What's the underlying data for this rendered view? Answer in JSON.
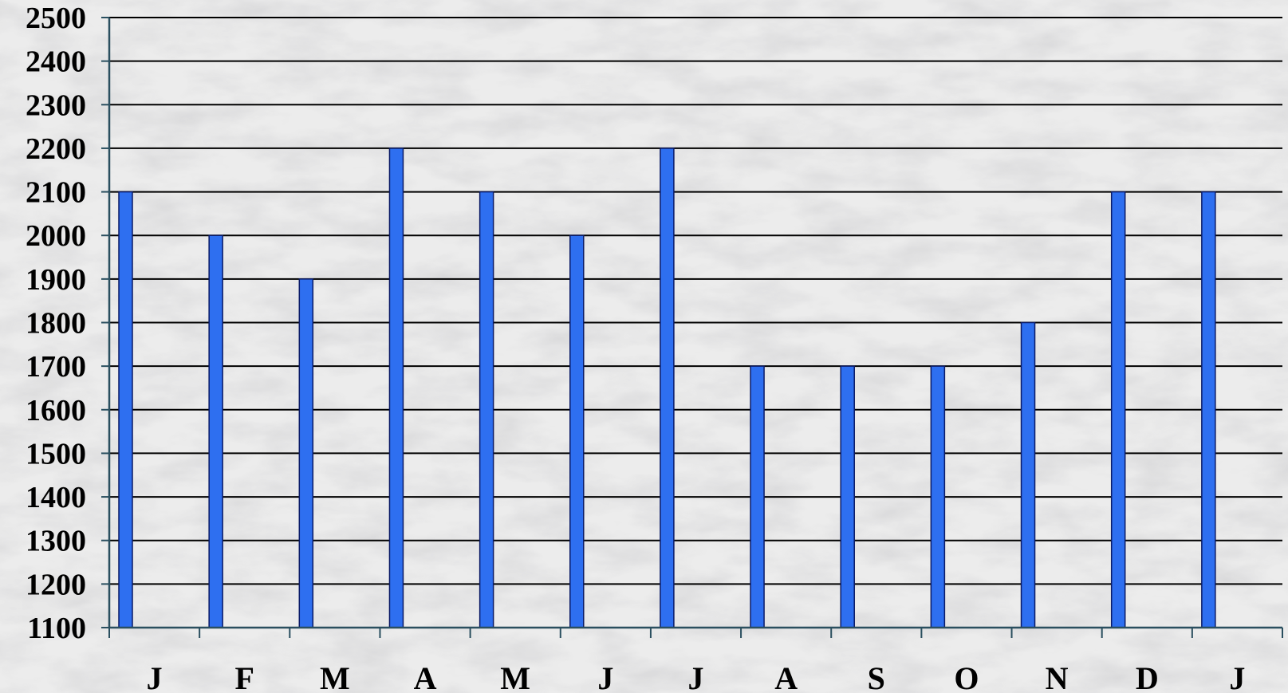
{
  "chart_data": {
    "type": "bar",
    "categories": [
      "J",
      "F",
      "M",
      "A",
      "M",
      "J",
      "J",
      "A",
      "S",
      "O",
      "N",
      "D",
      "J"
    ],
    "values": [
      2100,
      2000,
      1900,
      2200,
      2100,
      2000,
      2200,
      1700,
      1700,
      1700,
      1800,
      2100,
      2100
    ],
    "ylim": [
      1100,
      2500
    ],
    "yticks": [
      2500,
      2400,
      2300,
      2200,
      2100,
      2000,
      1900,
      1800,
      1700,
      1600,
      1500,
      1400,
      1300,
      1200,
      1100
    ],
    "grid": true,
    "legend": "none",
    "colors": {
      "bar": "#2e6ff0",
      "bar_stroke": "#0a1a66",
      "grid": "#000000",
      "axis": "#2a4f5f",
      "background": "#e9e9e9"
    }
  }
}
